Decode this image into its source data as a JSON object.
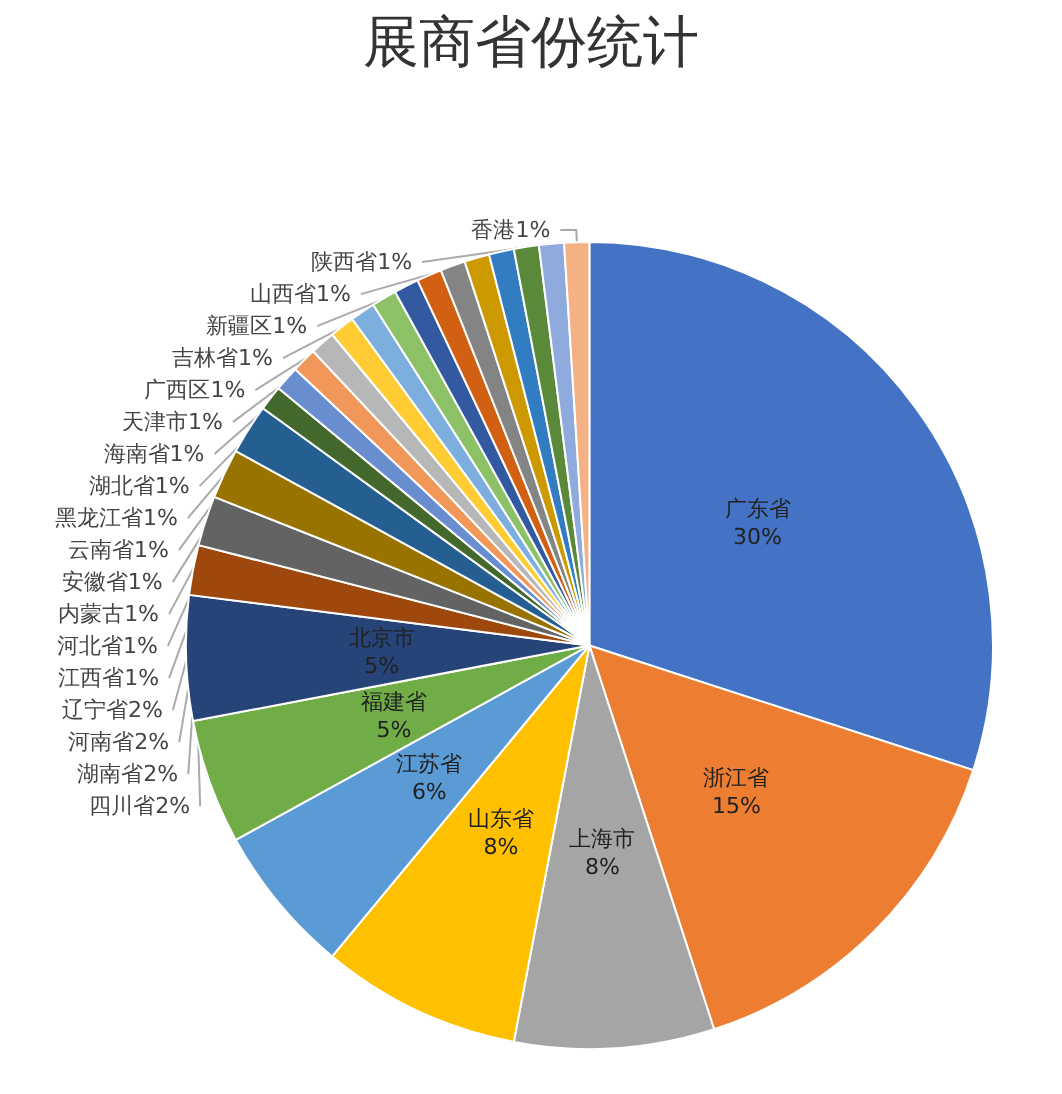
{
  "chart_data": {
    "type": "pie",
    "title": "展商省份统计",
    "categories": [
      "广东省",
      "浙江省",
      "上海市",
      "山东省",
      "江苏省",
      "福建省",
      "北京市",
      "四川省",
      "湖南省",
      "河南省",
      "辽宁省",
      "江西省",
      "河北省",
      "内蒙古",
      "安徽省",
      "云南省",
      "黑龙江省",
      "湖北省",
      "海南省",
      "天津市",
      "广西区",
      "吉林省",
      "新疆区",
      "山西省",
      "陕西省",
      "香港"
    ],
    "values": [
      30,
      15,
      8,
      8,
      6,
      5,
      5,
      2,
      2,
      2,
      2,
      1,
      1,
      1,
      1,
      1,
      1,
      1,
      1,
      1,
      1,
      1,
      1,
      1,
      1,
      1
    ],
    "colors": [
      "#4472c4",
      "#ed7d31",
      "#a5a5a5",
      "#ffc000",
      "#5b9bd5",
      "#70ad47",
      "#264478",
      "#9e480e",
      "#636363",
      "#997300",
      "#255e91",
      "#43682b",
      "#698ed0",
      "#f1975a",
      "#b7b7b7",
      "#ffcd33",
      "#7cafdd",
      "#8cc168",
      "#335aa1",
      "#d26012",
      "#848484",
      "#cc9a00",
      "#327dc2",
      "#5a8a39",
      "#8faadc",
      "#f4b183"
    ],
    "value_labels": [
      "30%",
      "15%",
      "8%",
      "8%",
      "6%",
      "5%",
      "5%",
      "2%",
      "2%",
      "2%",
      "2%",
      "1%",
      "1%",
      "1%",
      "1%",
      "1%",
      "1%",
      "1%",
      "1%",
      "1%",
      "1%",
      "1%",
      "1%",
      "1%",
      "1%",
      "1%"
    ]
  }
}
